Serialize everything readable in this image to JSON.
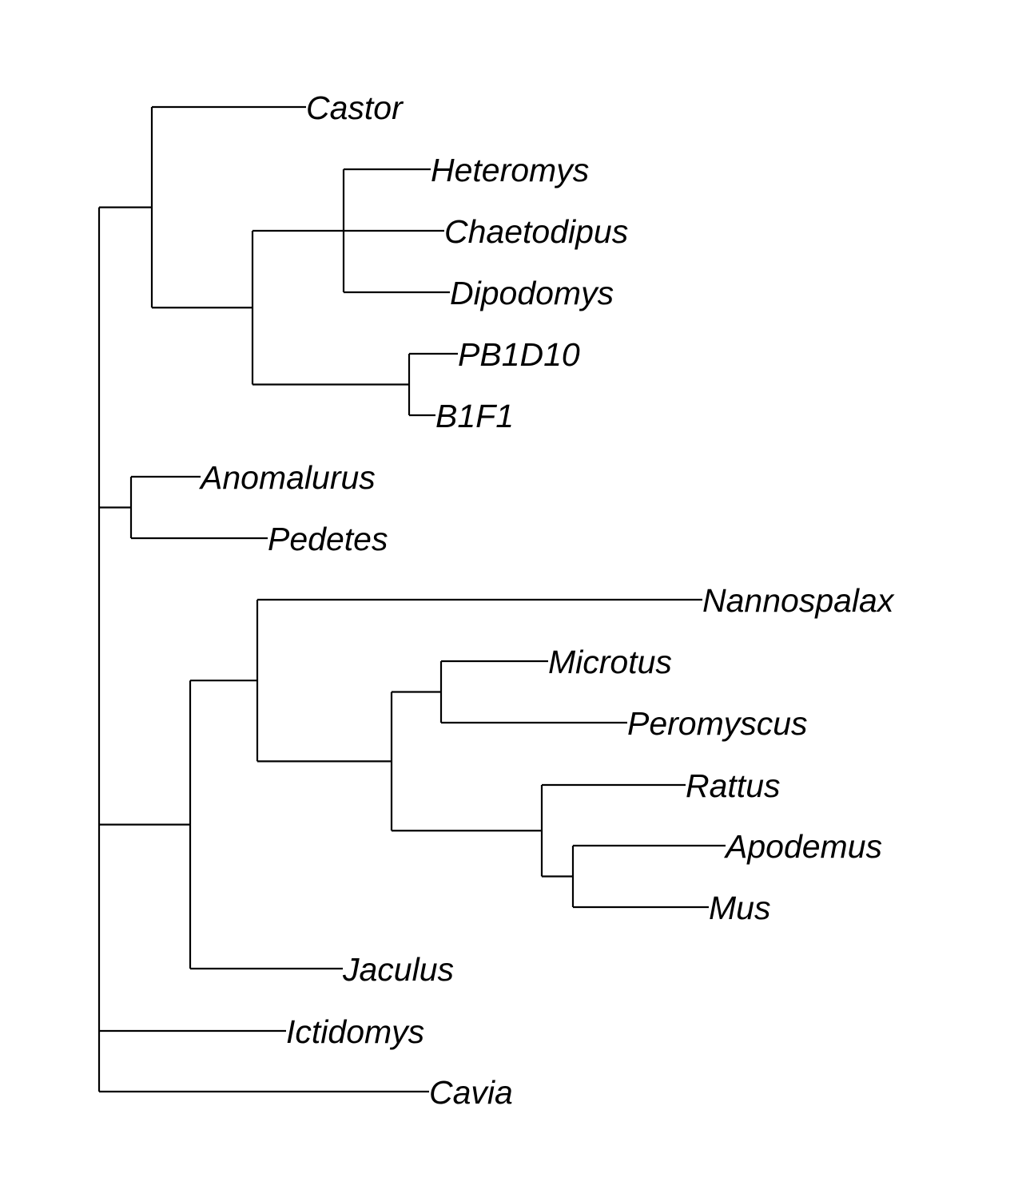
{
  "tree": {
    "name": "root",
    "children": [
      {
        "name": "n1",
        "children": [
          {
            "name": "Castor"
          },
          {
            "name": "n2",
            "children": [
              {
                "name": "n3",
                "children": [
                  {
                    "name": "Heteromys"
                  },
                  {
                    "name": "Chaetodipus"
                  },
                  {
                    "name": "Dipodomys"
                  }
                ]
              },
              {
                "name": "n4",
                "children": [
                  {
                    "name": "PB1D10"
                  },
                  {
                    "name": "B1F1"
                  }
                ]
              }
            ]
          }
        ]
      },
      {
        "name": "n5",
        "children": [
          {
            "name": "Anomalurus"
          },
          {
            "name": "Pedetes"
          }
        ]
      },
      {
        "name": "n6",
        "children": [
          {
            "name": "n7",
            "children": [
              {
                "name": "Nannospalax"
              },
              {
                "name": "n8",
                "children": [
                  {
                    "name": "n9",
                    "children": [
                      {
                        "name": "Microtus"
                      },
                      {
                        "name": "Peromyscus"
                      }
                    ]
                  },
                  {
                    "name": "n10",
                    "children": [
                      {
                        "name": "Rattus"
                      },
                      {
                        "name": "n11",
                        "children": [
                          {
                            "name": "Apodemus"
                          },
                          {
                            "name": "Mus"
                          }
                        ]
                      }
                    ]
                  }
                ]
              }
            ]
          },
          {
            "name": "Jaculus"
          }
        ]
      },
      {
        "name": "Ictidomys"
      },
      {
        "name": "Cavia"
      }
    ]
  },
  "tips": [
    "Castor",
    "Heteromys",
    "Chaetodipus",
    "Dipodomys",
    "PB1D10",
    "B1F1",
    "Anomalurus",
    "Pedetes",
    "Nannospalax",
    "Microtus",
    "Peromyscus",
    "Rattus",
    "Apodemus",
    "Mus",
    "Jaculus",
    "Ictidomys",
    "Cavia"
  ],
  "colors": {
    "line": "#000000",
    "text": "#000000",
    "background": "#ffffff"
  }
}
